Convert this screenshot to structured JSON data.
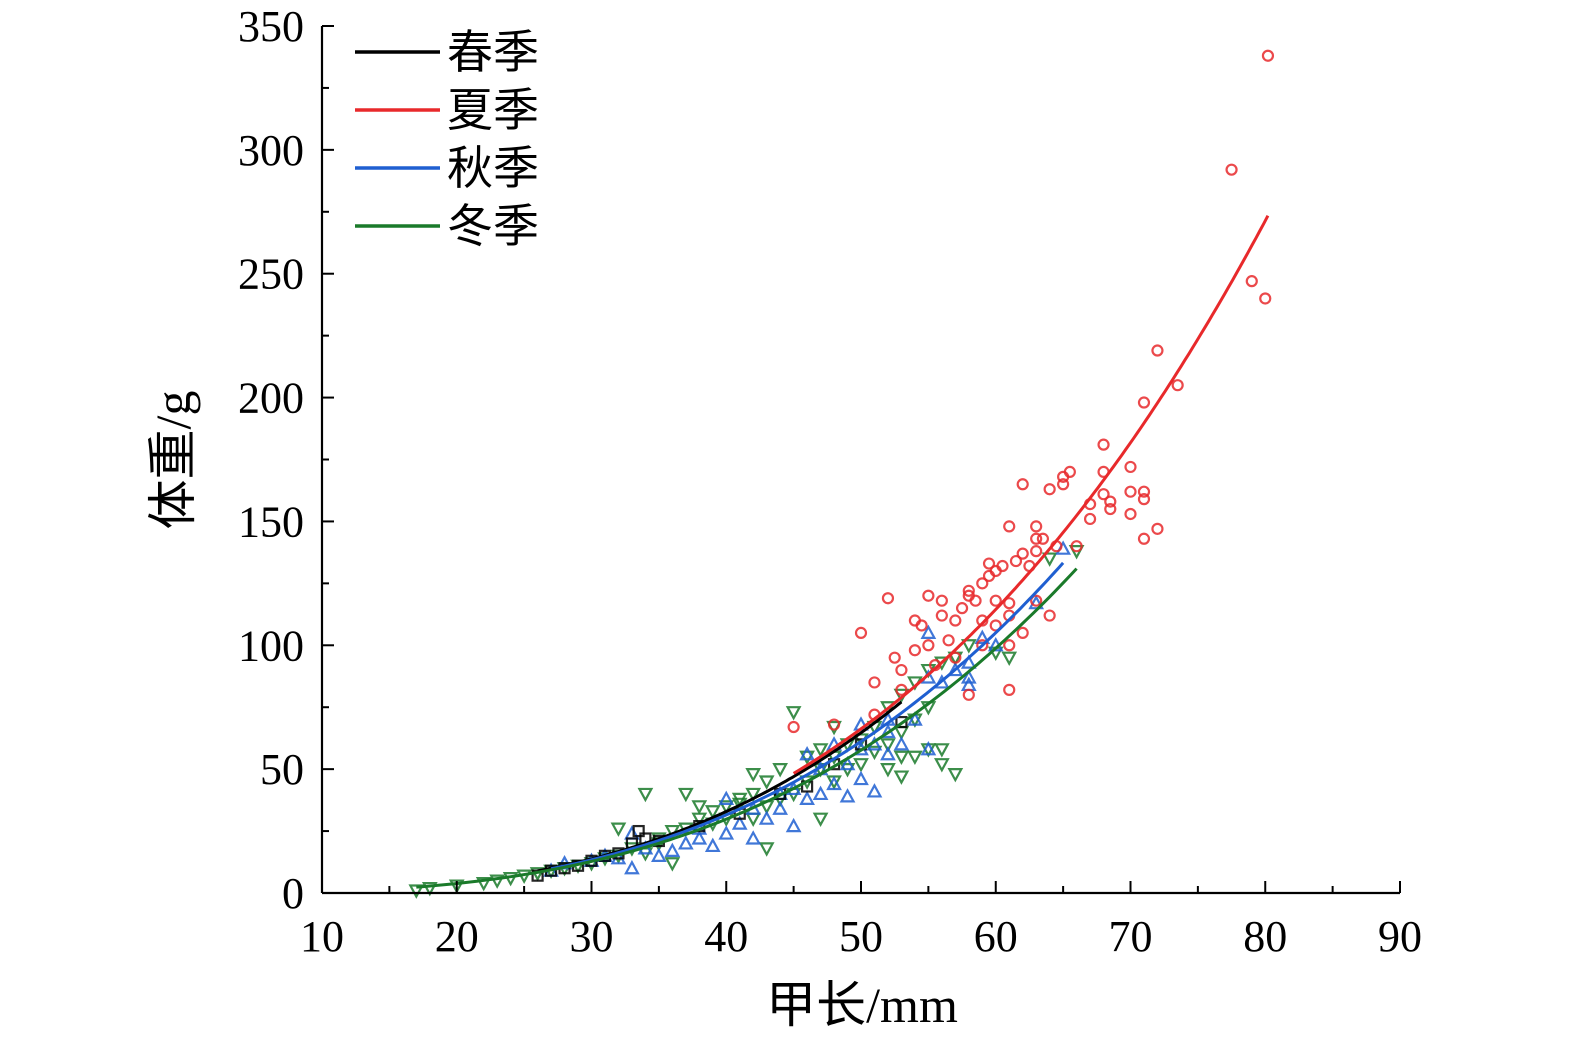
{
  "chart_data": {
    "type": "scatter",
    "title": "",
    "xlabel": "甲长/mm",
    "ylabel": "体重/g",
    "xlim": [
      10,
      90
    ],
    "ylim": [
      0,
      350
    ],
    "xticks": [
      10,
      20,
      30,
      40,
      50,
      60,
      70,
      80,
      90
    ],
    "yticks": [
      0,
      50,
      100,
      150,
      200,
      250,
      300,
      350
    ],
    "grid": false,
    "legend_position": "top-left",
    "series": [
      {
        "name": "春季",
        "color": "#000000",
        "marker": "square",
        "fit": {
          "a": 0.00046,
          "b": 3.03,
          "x_range": [
            26,
            53
          ]
        },
        "points": [
          [
            26,
            7
          ],
          [
            27,
            9
          ],
          [
            28,
            10
          ],
          [
            29,
            11
          ],
          [
            30,
            13
          ],
          [
            31,
            15
          ],
          [
            32,
            16
          ],
          [
            33,
            20
          ],
          [
            33.5,
            25
          ],
          [
            34,
            22
          ],
          [
            35,
            21
          ],
          [
            38,
            27
          ],
          [
            41,
            32
          ],
          [
            44,
            40
          ],
          [
            46,
            43
          ],
          [
            48,
            52
          ],
          [
            50,
            60
          ],
          [
            53,
            69
          ]
        ]
      },
      {
        "name": "夏季",
        "color": "#e8292b",
        "marker": "circle",
        "fit": {
          "a": 0.00053,
          "b": 3.0,
          "x_range": [
            45,
            80.2
          ]
        },
        "points": [
          [
            45,
            67
          ],
          [
            48,
            68
          ],
          [
            50,
            105
          ],
          [
            51,
            85
          ],
          [
            51,
            72
          ],
          [
            52,
            119
          ],
          [
            52.5,
            95
          ],
          [
            53,
            90
          ],
          [
            53,
            82
          ],
          [
            54,
            110
          ],
          [
            54,
            98
          ],
          [
            54.5,
            108
          ],
          [
            55,
            120
          ],
          [
            55,
            100
          ],
          [
            55.5,
            92
          ],
          [
            56,
            118
          ],
          [
            56,
            112
          ],
          [
            56.5,
            102
          ],
          [
            57,
            95
          ],
          [
            57,
            110
          ],
          [
            57.5,
            115
          ],
          [
            58,
            120
          ],
          [
            58,
            122
          ],
          [
            58,
            80
          ],
          [
            58.5,
            118
          ],
          [
            59,
            125
          ],
          [
            59,
            110
          ],
          [
            59,
            100
          ],
          [
            59.5,
            133
          ],
          [
            59.5,
            128
          ],
          [
            60,
            130
          ],
          [
            60,
            118
          ],
          [
            60,
            108
          ],
          [
            60.5,
            132
          ],
          [
            61,
            148
          ],
          [
            61,
            117
          ],
          [
            61,
            112
          ],
          [
            61,
            100
          ],
          [
            61,
            82
          ],
          [
            61.5,
            134
          ],
          [
            62,
            165
          ],
          [
            62,
            137
          ],
          [
            62,
            105
          ],
          [
            62.5,
            132
          ],
          [
            63,
            148
          ],
          [
            63,
            143
          ],
          [
            63,
            138
          ],
          [
            63,
            118
          ],
          [
            63.5,
            143
          ],
          [
            64,
            163
          ],
          [
            64,
            112
          ],
          [
            64.5,
            140
          ],
          [
            65,
            168
          ],
          [
            65,
            165
          ],
          [
            65.5,
            170
          ],
          [
            66,
            140
          ],
          [
            67,
            157
          ],
          [
            67,
            151
          ],
          [
            68,
            181
          ],
          [
            68,
            170
          ],
          [
            68,
            161
          ],
          [
            68.5,
            158
          ],
          [
            68.5,
            155
          ],
          [
            70,
            172
          ],
          [
            70,
            162
          ],
          [
            70,
            153
          ],
          [
            71,
            198
          ],
          [
            71,
            162
          ],
          [
            71,
            159
          ],
          [
            71,
            143
          ],
          [
            72,
            219
          ],
          [
            72,
            147
          ],
          [
            73.5,
            205
          ],
          [
            77.5,
            292
          ],
          [
            79,
            247
          ],
          [
            80,
            240
          ],
          [
            80.2,
            338
          ]
        ]
      },
      {
        "name": "秋季",
        "color": "#1f5fd1",
        "marker": "triangle-up",
        "fit": {
          "a": 0.00055,
          "b": 2.97,
          "x_range": [
            27,
            65
          ]
        },
        "points": [
          [
            27,
            9
          ],
          [
            28,
            12
          ],
          [
            30,
            13
          ],
          [
            31,
            15
          ],
          [
            32,
            14
          ],
          [
            33,
            10
          ],
          [
            33,
            24
          ],
          [
            34,
            18
          ],
          [
            35,
            15
          ],
          [
            36,
            17
          ],
          [
            37,
            20
          ],
          [
            38,
            22
          ],
          [
            38,
            26
          ],
          [
            39,
            19
          ],
          [
            40,
            24
          ],
          [
            40,
            38
          ],
          [
            41,
            28
          ],
          [
            42,
            22
          ],
          [
            42,
            34
          ],
          [
            43,
            30
          ],
          [
            44,
            34
          ],
          [
            44,
            40
          ],
          [
            45,
            27
          ],
          [
            45,
            42
          ],
          [
            46,
            38
          ],
          [
            46,
            56
          ],
          [
            47,
            40
          ],
          [
            47,
            50
          ],
          [
            48,
            44
          ],
          [
            48,
            60
          ],
          [
            49,
            39
          ],
          [
            49,
            52
          ],
          [
            50,
            46
          ],
          [
            50,
            58
          ],
          [
            50,
            68
          ],
          [
            51,
            41
          ],
          [
            51,
            60
          ],
          [
            52,
            56
          ],
          [
            52,
            65
          ],
          [
            52,
            70
          ],
          [
            53,
            60
          ],
          [
            54,
            70
          ],
          [
            55,
            58
          ],
          [
            55,
            87
          ],
          [
            55,
            105
          ],
          [
            56,
            85
          ],
          [
            57,
            90
          ],
          [
            58,
            84
          ],
          [
            58,
            87
          ],
          [
            58,
            93
          ],
          [
            59,
            103
          ],
          [
            60,
            100
          ],
          [
            63,
            117
          ],
          [
            65,
            139
          ]
        ]
      },
      {
        "name": "冬季",
        "color": "#1a7a2a",
        "marker": "triangle-down",
        "fit": {
          "a": 0.00055,
          "b": 2.955,
          "x_range": [
            17,
            66
          ]
        },
        "points": [
          [
            17,
            1
          ],
          [
            18,
            2
          ],
          [
            20,
            3
          ],
          [
            22,
            4
          ],
          [
            23,
            5
          ],
          [
            24,
            6
          ],
          [
            25,
            7
          ],
          [
            26,
            8
          ],
          [
            27,
            9
          ],
          [
            28,
            10
          ],
          [
            29,
            11
          ],
          [
            30,
            12
          ],
          [
            31,
            14
          ],
          [
            32,
            15
          ],
          [
            32,
            26
          ],
          [
            33,
            18
          ],
          [
            34,
            16
          ],
          [
            34,
            40
          ],
          [
            35,
            20
          ],
          [
            35,
            22
          ],
          [
            36,
            12
          ],
          [
            36,
            25
          ],
          [
            37,
            26
          ],
          [
            37,
            40
          ],
          [
            38,
            30
          ],
          [
            38,
            35
          ],
          [
            39,
            28
          ],
          [
            39,
            33
          ],
          [
            40,
            30
          ],
          [
            40,
            35
          ],
          [
            41,
            36
          ],
          [
            41,
            38
          ],
          [
            42,
            30
          ],
          [
            42,
            40
          ],
          [
            42,
            48
          ],
          [
            43,
            18
          ],
          [
            43,
            35
          ],
          [
            43,
            45
          ],
          [
            44,
            38
          ],
          [
            44,
            50
          ],
          [
            45,
            40
          ],
          [
            45,
            73
          ],
          [
            46,
            45
          ],
          [
            46,
            55
          ],
          [
            47,
            30
          ],
          [
            47,
            50
          ],
          [
            47,
            58
          ],
          [
            48,
            45
          ],
          [
            48,
            55
          ],
          [
            48,
            67
          ],
          [
            49,
            50
          ],
          [
            49,
            60
          ],
          [
            50,
            52
          ],
          [
            50,
            62
          ],
          [
            51,
            57
          ],
          [
            51,
            67
          ],
          [
            52,
            50
          ],
          [
            52,
            60
          ],
          [
            52,
            75
          ],
          [
            53,
            47
          ],
          [
            53,
            55
          ],
          [
            53,
            65
          ],
          [
            53,
            80
          ],
          [
            54,
            55
          ],
          [
            54,
            70
          ],
          [
            54,
            85
          ],
          [
            55,
            58
          ],
          [
            55,
            75
          ],
          [
            55,
            90
          ],
          [
            56,
            52
          ],
          [
            56,
            58
          ],
          [
            56,
            93
          ],
          [
            57,
            48
          ],
          [
            57,
            95
          ],
          [
            58,
            100
          ],
          [
            60,
            97
          ],
          [
            61,
            95
          ],
          [
            64,
            135
          ],
          [
            66,
            138
          ]
        ]
      }
    ]
  }
}
